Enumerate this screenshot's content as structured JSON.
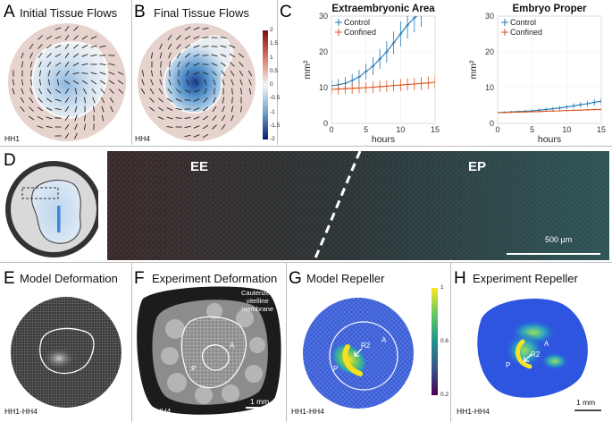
{
  "panels": {
    "A": {
      "letter": "A",
      "title": "Initial Tissue Flows",
      "stage": "HH1"
    },
    "B": {
      "letter": "B",
      "title": "Final Tissue Flows",
      "stage": "HH4",
      "colorbar_ticks": [
        "2",
        "1.5",
        "1",
        "0.5",
        "0",
        "-0.5",
        "-1",
        "-1.5",
        "-2"
      ]
    },
    "C": {
      "letter": "C"
    },
    "D": {
      "letter": "D",
      "label_left": "EE",
      "label_right": "EP",
      "scalebar": "500 μm"
    },
    "E": {
      "letter": "E",
      "title": "Model Deformation",
      "stage": "HH1-HH4"
    },
    "F": {
      "letter": "F",
      "title": "Experiment Deformation",
      "annotation": [
        "Cauterized",
        "vitelline",
        "membrane"
      ],
      "marker_a": "A",
      "marker_p": "P",
      "stage": "HH1- HH4",
      "scalebar": "1 mm"
    },
    "G": {
      "letter": "G",
      "title": "Model Repeller",
      "marker_a": "A",
      "marker_p": "P",
      "marker_r2": "R2",
      "stage": "HH1-HH4",
      "colorbar_ticks": [
        "1",
        "0.6",
        "0.2"
      ]
    },
    "H": {
      "letter": "H",
      "title": "Experiment Repeller",
      "marker_a": "A",
      "marker_p": "P",
      "marker_r2": "R2",
      "stage": "HH1-HH4",
      "scalebar": "1 mm"
    }
  },
  "colors": {
    "control": "#1f77b4",
    "confined": "#d9541a",
    "field_pink": "#e6d2cc",
    "grid": "#dcdcdc"
  },
  "chart_data": [
    {
      "type": "line",
      "title": "Extraembryonic Area",
      "xlabel": "hours",
      "ylabel": "mm²",
      "xlim": [
        0,
        15
      ],
      "ylim": [
        0,
        30
      ],
      "xticks": [
        0,
        5,
        10,
        15
      ],
      "yticks": [
        0,
        10,
        20,
        30
      ],
      "legend": "top-left",
      "series": [
        {
          "name": "Control",
          "color": "#1f77b4",
          "x": [
            0,
            1,
            2,
            3,
            4,
            5,
            6,
            7,
            8,
            9,
            10,
            11,
            12,
            13
          ],
          "y": [
            10.5,
            10.8,
            11.2,
            12,
            13,
            14.5,
            16,
            18,
            20,
            22.5,
            25,
            27.5,
            29.5,
            31
          ],
          "err": [
            1.5,
            1.6,
            1.7,
            1.8,
            2,
            2.2,
            2.5,
            2.8,
            3,
            3.2,
            3.5,
            3.8,
            4,
            4
          ]
        },
        {
          "name": "Confined",
          "color": "#d9541a",
          "x": [
            0,
            1,
            2,
            3,
            4,
            5,
            6,
            7,
            8,
            9,
            10,
            11,
            12,
            13,
            14,
            15
          ],
          "y": [
            9.5,
            9.6,
            9.7,
            9.8,
            9.9,
            10,
            10.1,
            10.3,
            10.4,
            10.6,
            10.7,
            10.9,
            11,
            11.2,
            11.3,
            11.5
          ],
          "err": [
            1.5,
            1.5,
            1.5,
            1.5,
            1.5,
            1.5,
            1.6,
            1.6,
            1.6,
            1.6,
            1.7,
            1.7,
            1.7,
            1.8,
            1.8,
            1.8
          ]
        }
      ]
    },
    {
      "type": "line",
      "title": "Embryo Proper",
      "xlabel": "hours",
      "ylabel": "mm²",
      "xlim": [
        0,
        15
      ],
      "ylim": [
        0,
        30
      ],
      "xticks": [
        0,
        5,
        10,
        15
      ],
      "yticks": [
        0,
        10,
        20,
        30
      ],
      "legend": "top-left",
      "series": [
        {
          "name": "Control",
          "color": "#1f77b4",
          "x": [
            0,
            1,
            2,
            3,
            4,
            5,
            6,
            7,
            8,
            9,
            10,
            11,
            12,
            13,
            14,
            15
          ],
          "y": [
            3,
            3.1,
            3.2,
            3.3,
            3.4,
            3.5,
            3.7,
            3.9,
            4.1,
            4.3,
            4.6,
            4.9,
            5.2,
            5.5,
            5.9,
            6.2
          ],
          "err": [
            0.3,
            0.3,
            0.3,
            0.3,
            0.4,
            0.4,
            0.4,
            0.5,
            0.5,
            0.6,
            0.6,
            0.7,
            0.8,
            0.8,
            0.9,
            1
          ]
        },
        {
          "name": "Confined",
          "color": "#d9541a",
          "x": [
            0,
            1,
            2,
            3,
            4,
            5,
            6,
            7,
            8,
            9,
            10,
            11,
            12,
            13,
            14,
            15
          ],
          "y": [
            3,
            3.05,
            3.1,
            3.15,
            3.2,
            3.25,
            3.3,
            3.4,
            3.45,
            3.5,
            3.6,
            3.65,
            3.7,
            3.8,
            3.85,
            3.9
          ],
          "err": [
            0.2,
            0.2,
            0.2,
            0.2,
            0.2,
            0.2,
            0.2,
            0.2,
            0.2,
            0.2,
            0.2,
            0.2,
            0.2,
            0.2,
            0.2,
            0.2
          ]
        }
      ]
    }
  ]
}
